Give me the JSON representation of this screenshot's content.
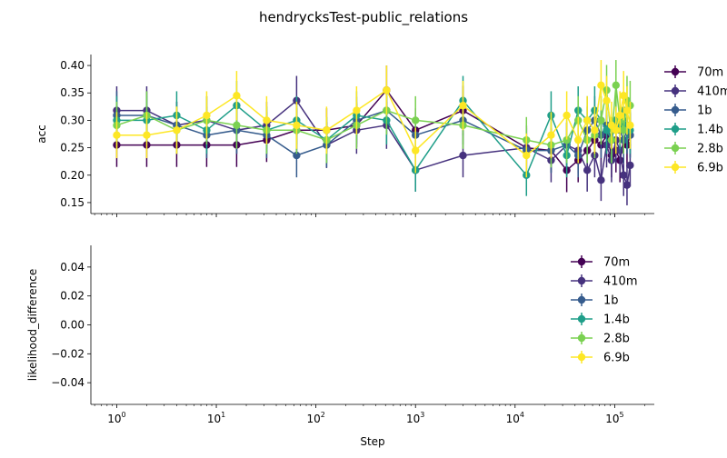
{
  "figure": {
    "title": "hendrycksTest-public_relations"
  },
  "chart_data": [
    {
      "type": "line",
      "panel": "top",
      "title": "",
      "xlabel": "",
      "ylabel": "acc",
      "xscale": "log",
      "xlim": [
        0.55,
        250000
      ],
      "ylim": [
        0.13,
        0.42
      ],
      "yticks": [
        0.15,
        0.2,
        0.25,
        0.3,
        0.35,
        0.4
      ],
      "ytick_labels": [
        "0.15",
        "0.20",
        "0.25",
        "0.30",
        "0.35",
        "0.40"
      ],
      "legend_position": "upper-right-outside",
      "errorbars": true,
      "series": [
        {
          "name": "70m",
          "color": "#440154",
          "x": [
            1,
            2,
            4,
            8,
            16,
            32,
            64,
            128,
            256,
            512,
            1000,
            3000,
            13000,
            23000,
            33000,
            43000,
            53000,
            63000,
            73000,
            83000,
            93000,
            103000,
            113000,
            123000,
            133000,
            143000
          ],
          "y": [
            0.255,
            0.255,
            0.255,
            0.255,
            0.255,
            0.264,
            0.282,
            0.282,
            0.291,
            0.355,
            0.282,
            0.318,
            0.25,
            0.245,
            0.209,
            0.227,
            0.245,
            0.264,
            0.255,
            0.273,
            0.236,
            0.245,
            0.227,
            0.264,
            0.255,
            0.273
          ],
          "err": [
            0.04,
            0.04,
            0.04,
            0.04,
            0.04,
            0.04,
            0.04,
            0.04,
            0.04,
            0.045,
            0.04,
            0.045,
            0.04,
            0.04,
            0.04,
            0.04,
            0.04,
            0.04,
            0.04,
            0.04,
            0.04,
            0.04,
            0.04,
            0.04,
            0.04,
            0.04
          ]
        },
        {
          "name": "410m",
          "color": "#46327e",
          "x": [
            1,
            2,
            4,
            8,
            16,
            32,
            64,
            128,
            256,
            512,
            1000,
            3000,
            13000,
            23000,
            33000,
            43000,
            53000,
            63000,
            73000,
            83000,
            93000,
            103000,
            113000,
            123000,
            133000,
            143000
          ],
          "y": [
            0.318,
            0.318,
            0.291,
            0.3,
            0.282,
            0.291,
            0.336,
            0.255,
            0.282,
            0.291,
            0.209,
            0.236,
            0.25,
            0.227,
            0.255,
            0.245,
            0.209,
            0.236,
            0.191,
            0.255,
            0.227,
            0.264,
            0.245,
            0.2,
            0.182,
            0.218
          ],
          "err": [
            0.044,
            0.044,
            0.043,
            0.044,
            0.043,
            0.043,
            0.045,
            0.042,
            0.043,
            0.043,
            0.039,
            0.04,
            0.041,
            0.04,
            0.041,
            0.041,
            0.039,
            0.04,
            0.038,
            0.041,
            0.04,
            0.042,
            0.041,
            0.038,
            0.037,
            0.039
          ]
        },
        {
          "name": "1b",
          "color": "#365c8d",
          "x": [
            1,
            2,
            4,
            8,
            16,
            32,
            64,
            128,
            256,
            512,
            1000,
            3000,
            13000,
            23000,
            33000,
            43000,
            53000,
            63000,
            73000,
            83000,
            93000,
            103000,
            113000,
            123000,
            133000,
            143000
          ],
          "y": [
            0.309,
            0.309,
            0.291,
            0.273,
            0.282,
            0.273,
            0.236,
            0.255,
            0.3,
            0.318,
            0.273,
            0.3,
            0.245,
            0.245,
            0.255,
            0.236,
            0.282,
            0.3,
            0.273,
            0.291,
            0.264,
            0.3,
            0.282,
            0.264,
            0.282,
            0.273
          ],
          "err": [
            0.044,
            0.044,
            0.043,
            0.042,
            0.043,
            0.042,
            0.04,
            0.041,
            0.043,
            0.044,
            0.042,
            0.044,
            0.041,
            0.041,
            0.041,
            0.04,
            0.043,
            0.044,
            0.042,
            0.043,
            0.042,
            0.044,
            0.043,
            0.042,
            0.043,
            0.042
          ]
        },
        {
          "name": "1.4b",
          "color": "#1f9e89",
          "x": [
            1,
            2,
            4,
            8,
            16,
            32,
            64,
            128,
            256,
            512,
            1000,
            3000,
            13000,
            23000,
            33000,
            43000,
            53000,
            63000,
            73000,
            83000,
            93000,
            103000,
            113000,
            123000,
            133000,
            143000
          ],
          "y": [
            0.3,
            0.3,
            0.309,
            0.282,
            0.327,
            0.282,
            0.3,
            0.264,
            0.309,
            0.3,
            0.209,
            0.336,
            0.2,
            0.309,
            0.236,
            0.318,
            0.3,
            0.318,
            0.3,
            0.282,
            0.264,
            0.3,
            0.291,
            0.318,
            0.291,
            0.282
          ],
          "err": [
            0.044,
            0.044,
            0.044,
            0.043,
            0.045,
            0.043,
            0.044,
            0.042,
            0.044,
            0.044,
            0.039,
            0.045,
            0.038,
            0.044,
            0.04,
            0.044,
            0.044,
            0.044,
            0.044,
            0.043,
            0.042,
            0.044,
            0.043,
            0.044,
            0.043,
            0.043
          ]
        },
        {
          "name": "2.8b",
          "color": "#7ad151",
          "x": [
            1,
            2,
            4,
            8,
            16,
            32,
            64,
            128,
            256,
            512,
            1000,
            3000,
            13000,
            23000,
            33000,
            43000,
            53000,
            63000,
            73000,
            83000,
            93000,
            103000,
            113000,
            123000,
            133000,
            143000
          ],
          "y": [
            0.291,
            0.309,
            0.282,
            0.3,
            0.291,
            0.282,
            0.282,
            0.264,
            0.291,
            0.318,
            0.3,
            0.291,
            0.264,
            0.255,
            0.264,
            0.3,
            0.264,
            0.273,
            0.3,
            0.355,
            0.264,
            0.364,
            0.3,
            0.282,
            0.336,
            0.327
          ],
          "err": [
            0.043,
            0.044,
            0.043,
            0.044,
            0.043,
            0.043,
            0.043,
            0.042,
            0.043,
            0.044,
            0.044,
            0.043,
            0.042,
            0.041,
            0.042,
            0.044,
            0.042,
            0.042,
            0.044,
            0.046,
            0.042,
            0.046,
            0.044,
            0.043,
            0.045,
            0.045
          ]
        },
        {
          "name": "6.9b",
          "color": "#fde725",
          "x": [
            1,
            2,
            4,
            8,
            16,
            32,
            64,
            128,
            256,
            512,
            1000,
            3000,
            13000,
            23000,
            33000,
            43000,
            53000,
            63000,
            73000,
            83000,
            93000,
            103000,
            113000,
            123000,
            133000,
            143000
          ],
          "y": [
            0.273,
            0.273,
            0.282,
            0.309,
            0.345,
            0.3,
            0.291,
            0.282,
            0.318,
            0.355,
            0.245,
            0.327,
            0.236,
            0.273,
            0.309,
            0.264,
            0.3,
            0.282,
            0.364,
            0.336,
            0.291,
            0.282,
            0.309,
            0.345,
            0.318,
            0.291
          ],
          "err": [
            0.042,
            0.042,
            0.043,
            0.044,
            0.045,
            0.044,
            0.043,
            0.043,
            0.044,
            0.045,
            0.041,
            0.045,
            0.04,
            0.042,
            0.044,
            0.042,
            0.044,
            0.043,
            0.046,
            0.045,
            0.043,
            0.043,
            0.044,
            0.045,
            0.044,
            0.043
          ]
        }
      ]
    },
    {
      "type": "line",
      "panel": "bottom",
      "title": "",
      "xlabel": "Step",
      "ylabel": "likelihood_difference",
      "xscale": "log",
      "xlim": [
        0.55,
        250000
      ],
      "ylim": [
        -0.055,
        0.055
      ],
      "yticks": [
        -0.04,
        -0.02,
        0.0,
        0.02,
        0.04
      ],
      "ytick_labels": [
        "−0.04",
        "−0.02",
        "0.00",
        "0.02",
        "0.04"
      ],
      "xtick_exponents": [
        "0",
        "1",
        "2",
        "3",
        "4",
        "5"
      ],
      "legend_position": "upper-right",
      "series": [
        {
          "name": "70m",
          "color": "#440154",
          "x": [],
          "y": []
        },
        {
          "name": "410m",
          "color": "#46327e",
          "x": [],
          "y": []
        },
        {
          "name": "1b",
          "color": "#365c8d",
          "x": [],
          "y": []
        },
        {
          "name": "1.4b",
          "color": "#1f9e89",
          "x": [],
          "y": []
        },
        {
          "name": "2.8b",
          "color": "#7ad151",
          "x": [],
          "y": []
        },
        {
          "name": "6.9b",
          "color": "#fde725",
          "x": [],
          "y": []
        }
      ]
    }
  ]
}
